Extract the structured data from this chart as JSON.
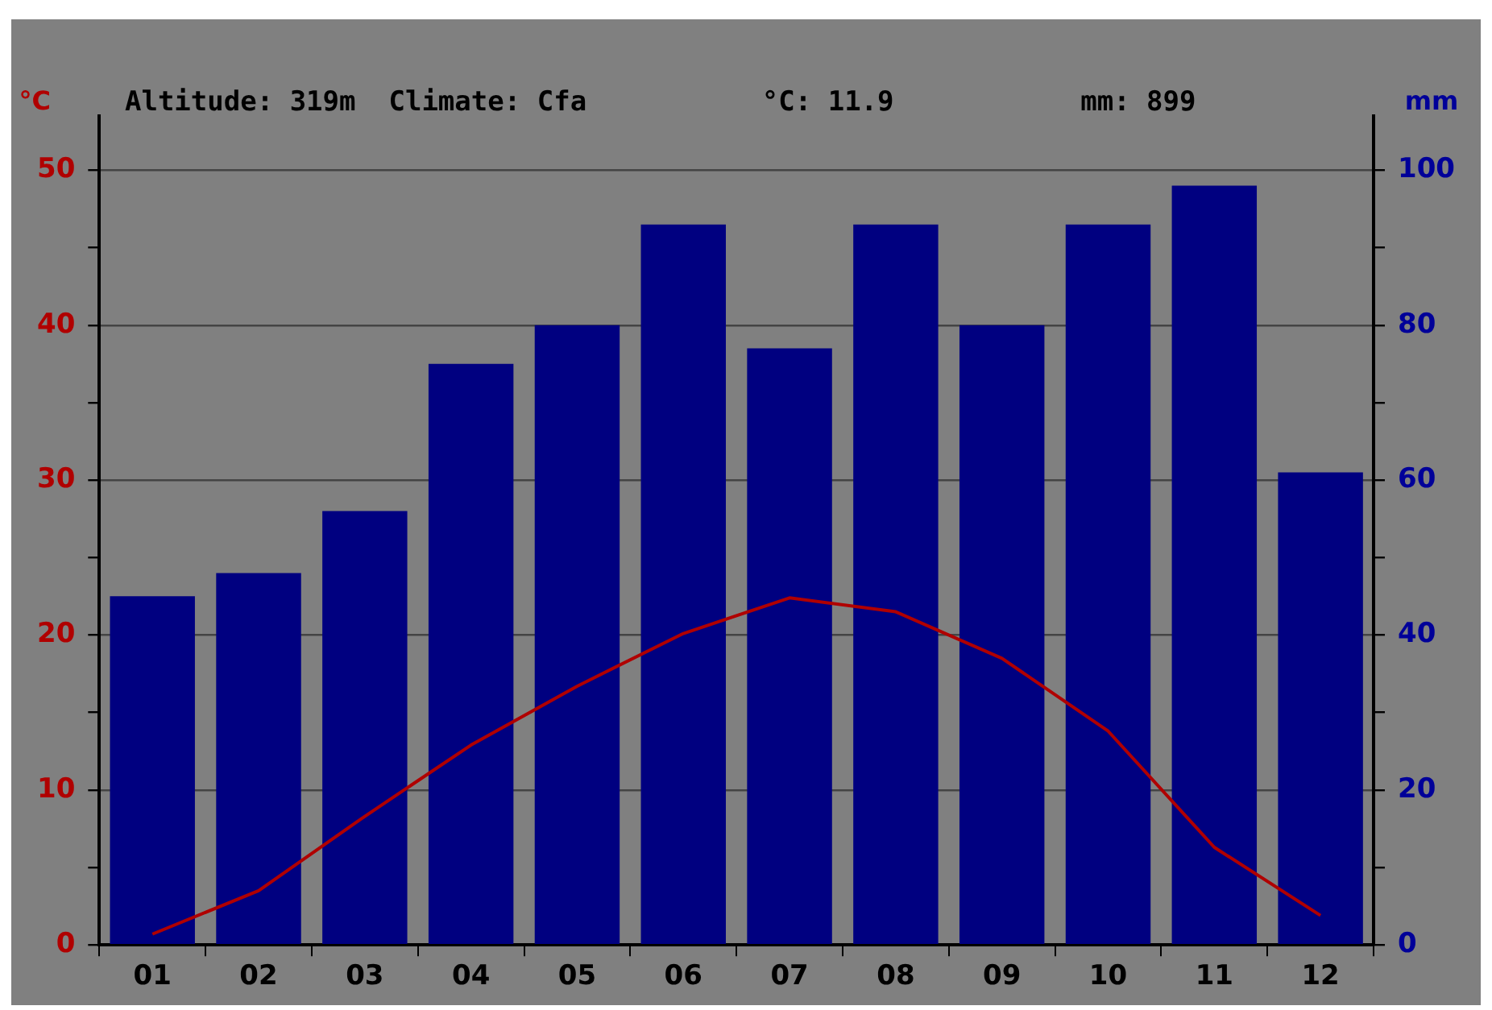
{
  "chart_data": {
    "type": "bar",
    "categories": [
      "01",
      "02",
      "03",
      "04",
      "05",
      "06",
      "07",
      "08",
      "09",
      "10",
      "11",
      "12"
    ],
    "series": [
      {
        "axis": "y2",
        "color": "#000080",
        "values": [
          45,
          48,
          56,
          75,
          80,
          93,
          77,
          93,
          80,
          93,
          98,
          61
        ]
      },
      {
        "type": "line",
        "axis": "y",
        "color": "#b00000",
        "values": [
          0.7,
          3.5,
          8.3,
          12.9,
          16.7,
          20.1,
          22.4,
          21.5,
          18.5,
          13.8,
          6.3,
          1.9
        ]
      }
    ],
    "ylabel": "°C",
    "y2label": "mm",
    "ylim": [
      0,
      53.5
    ],
    "yticks": [
      0,
      {
        "value": 5,
        "label": null
      },
      10,
      {
        "value": 15,
        "label": null
      },
      20,
      {
        "value": 25,
        "label": null
      },
      30,
      {
        "value": 35,
        "label": null
      },
      40,
      {
        "value": 45,
        "label": null
      },
      50
    ],
    "y2lim": [
      0,
      107
    ],
    "y2ticks": [
      0,
      {
        "value": 10,
        "label": null
      },
      20,
      {
        "value": 30,
        "label": null
      },
      40,
      {
        "value": 50,
        "label": null
      },
      60,
      {
        "value": 70,
        "label": null
      },
      80,
      {
        "value": 90,
        "label": null
      },
      100
    ],
    "annotations": [
      "Altitude: 319m  Climate: Cfa",
      "°C: 11.9",
      "mm: 899"
    ],
    "grid": "y",
    "legend": false,
    "marker": "none",
    "line_style": "solid"
  }
}
